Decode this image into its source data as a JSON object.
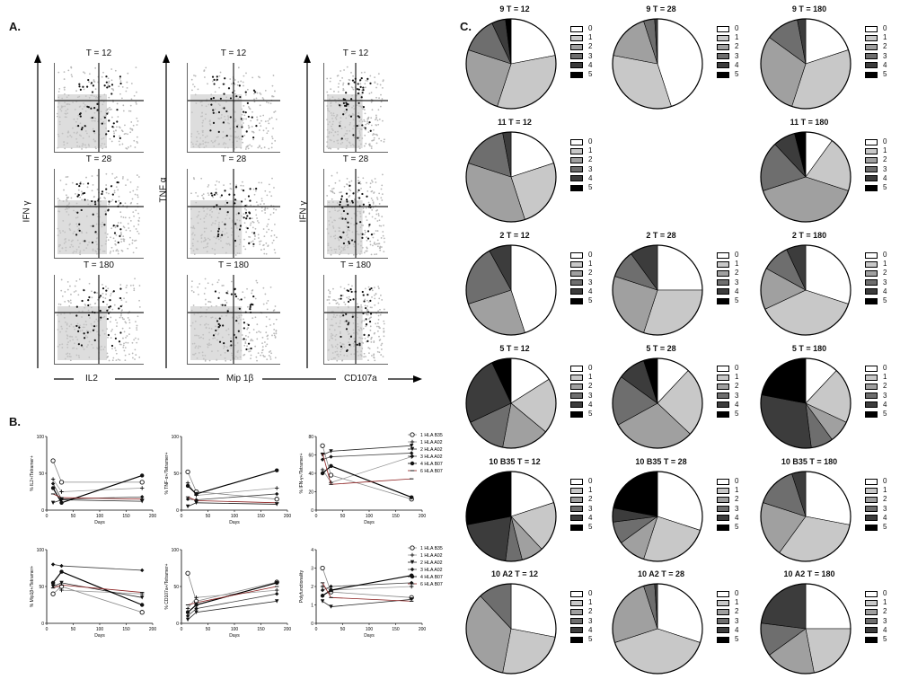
{
  "panel_a": {
    "label": "A.",
    "columns": [
      {
        "timepoints": [
          "T = 12",
          "T = 28",
          "T = 180"
        ],
        "y_label": "IFN γ",
        "x_label": "IL2"
      },
      {
        "timepoints": [
          "T = 12",
          "T = 28",
          "T = 180"
        ],
        "y_label": "TNF α",
        "x_label": "Mip 1β"
      },
      {
        "timepoints": [
          "T = 12",
          "T = 28",
          "T = 180"
        ],
        "y_label": "IFN γ",
        "x_label": "CD107a"
      }
    ]
  },
  "panel_b": {
    "label": "B.",
    "legend_entries": [
      "1 HLA B35",
      "1 HLA A02",
      "2 HLA A02",
      "3 HLA A02",
      "4 HLA B07",
      "6 HLA B07"
    ],
    "xlabel": "Days"
  },
  "panel_c": {
    "label": "C.",
    "legend_labels": [
      "0",
      "1",
      "2",
      "3",
      "4",
      "5"
    ],
    "legend_colors": [
      "#ffffff",
      "#c8c8c8",
      "#a0a0a0",
      "#6e6e6e",
      "#3c3c3c",
      "#000000"
    ]
  },
  "chart_data": [
    {
      "type": "line",
      "ylabel": "% IL2+/Tetramer+",
      "xlabel": "Days",
      "xlim": [
        0,
        200
      ],
      "ylim": [
        0,
        100
      ],
      "xticks": [
        0,
        50,
        100,
        150,
        200
      ],
      "yticks": [
        0,
        50,
        100
      ],
      "series": [
        {
          "name": "1 HLA B35",
          "x": [
            12,
            28,
            180
          ],
          "y": [
            67,
            38,
            38
          ]
        },
        {
          "name": "1 HLA A02",
          "x": [
            12,
            28,
            180
          ],
          "y": [
            42,
            25,
            30
          ]
        },
        {
          "name": "2 HLA A02",
          "x": [
            12,
            28,
            180
          ],
          "y": [
            10,
            14,
            12
          ]
        },
        {
          "name": "3 HLA A02",
          "x": [
            12,
            28,
            180
          ],
          "y": [
            36,
            15,
            18
          ]
        },
        {
          "name": "4 HLA B07",
          "x": [
            12,
            28,
            180
          ],
          "y": [
            30,
            10,
            47
          ]
        },
        {
          "name": "6 HLA B07",
          "x": [
            12,
            28,
            180
          ],
          "y": [
            22,
            17,
            15
          ]
        }
      ]
    },
    {
      "type": "line",
      "ylabel": "% TNF-α+/Tetramer+",
      "xlabel": "Days",
      "xlim": [
        0,
        200
      ],
      "ylim": [
        0,
        100
      ],
      "xticks": [
        0,
        50,
        100,
        150,
        200
      ],
      "yticks": [
        0,
        50,
        100
      ],
      "series": [
        {
          "name": "1 HLA B35",
          "x": [
            12,
            28,
            180
          ],
          "y": [
            52,
            25,
            15
          ]
        },
        {
          "name": "1 HLA A02",
          "x": [
            12,
            28,
            180
          ],
          "y": [
            37,
            20,
            30
          ]
        },
        {
          "name": "2 HLA A02",
          "x": [
            12,
            28,
            180
          ],
          "y": [
            5,
            10,
            8
          ]
        },
        {
          "name": "3 HLA A02",
          "x": [
            12,
            28,
            180
          ],
          "y": [
            15,
            14,
            22
          ]
        },
        {
          "name": "4 HLA B07",
          "x": [
            12,
            28,
            180
          ],
          "y": [
            33,
            22,
            54
          ]
        },
        {
          "name": "6 HLA B07",
          "x": [
            12,
            28,
            180
          ],
          "y": [
            18,
            13,
            10
          ]
        }
      ]
    },
    {
      "type": "line",
      "ylabel": "% IFN-γ+/Tetramer+",
      "xlabel": "Days",
      "xlim": [
        0,
        200
      ],
      "ylim": [
        0,
        80
      ],
      "xticks": [
        0,
        50,
        100,
        150,
        200
      ],
      "yticks": [
        0,
        20,
        40,
        60,
        80
      ],
      "series": [
        {
          "name": "1 HLA B35",
          "x": [
            12,
            28,
            180
          ],
          "y": [
            70,
            38,
            12
          ]
        },
        {
          "name": "1 HLA A02",
          "x": [
            12,
            28,
            180
          ],
          "y": [
            44,
            30,
            58
          ]
        },
        {
          "name": "2 HLA A02",
          "x": [
            12,
            28,
            180
          ],
          "y": [
            60,
            64,
            70
          ]
        },
        {
          "name": "3 HLA A02",
          "x": [
            12,
            28,
            180
          ],
          "y": [
            55,
            58,
            62
          ]
        },
        {
          "name": "4 HLA B07",
          "x": [
            12,
            28,
            180
          ],
          "y": [
            40,
            48,
            14
          ]
        },
        {
          "name": "6 HLA B07",
          "x": [
            12,
            28,
            180
          ],
          "y": [
            62,
            28,
            34
          ]
        }
      ]
    },
    {
      "type": "line",
      "ylabel": "% Mip1β+/Tetramer+",
      "xlabel": "Days",
      "xlim": [
        0,
        200
      ],
      "ylim": [
        0,
        100
      ],
      "xticks": [
        0,
        50,
        100,
        150,
        200
      ],
      "yticks": [
        0,
        50,
        100
      ],
      "series": [
        {
          "name": "1 HLA B35",
          "x": [
            12,
            28,
            180
          ],
          "y": [
            40,
            50,
            15
          ]
        },
        {
          "name": "1 HLA A02",
          "x": [
            12,
            28,
            180
          ],
          "y": [
            55,
            45,
            40
          ]
        },
        {
          "name": "2 HLA A02",
          "x": [
            12,
            28,
            180
          ],
          "y": [
            50,
            55,
            35
          ]
        },
        {
          "name": "3 HLA A02",
          "x": [
            12,
            28,
            180
          ],
          "y": [
            80,
            78,
            72
          ]
        },
        {
          "name": "4 HLA B07",
          "x": [
            12,
            28,
            180
          ],
          "y": [
            55,
            70,
            25
          ]
        },
        {
          "name": "6 HLA B07",
          "x": [
            12,
            28,
            180
          ],
          "y": [
            48,
            52,
            42
          ]
        }
      ]
    },
    {
      "type": "line",
      "ylabel": "% CD107a+/Tetramer+",
      "xlabel": "Days",
      "xlim": [
        0,
        200
      ],
      "ylim": [
        0,
        100
      ],
      "xticks": [
        0,
        50,
        100,
        150,
        200
      ],
      "yticks": [
        0,
        50,
        100
      ],
      "series": [
        {
          "name": "1 HLA B35",
          "x": [
            12,
            28,
            180
          ],
          "y": [
            68,
            30,
            56
          ]
        },
        {
          "name": "1 HLA A02",
          "x": [
            12,
            28,
            180
          ],
          "y": [
            20,
            35,
            45
          ]
        },
        {
          "name": "2 HLA A02",
          "x": [
            12,
            28,
            180
          ],
          "y": [
            5,
            15,
            30
          ]
        },
        {
          "name": "3 HLA A02",
          "x": [
            12,
            28,
            180
          ],
          "y": [
            10,
            20,
            40
          ]
        },
        {
          "name": "4 HLA B07",
          "x": [
            12,
            28,
            180
          ],
          "y": [
            15,
            25,
            55
          ]
        },
        {
          "name": "6 HLA B07",
          "x": [
            12,
            28,
            180
          ],
          "y": [
            25,
            28,
            50
          ]
        }
      ]
    },
    {
      "type": "line",
      "ylabel": "Polyfunctionality",
      "xlabel": "Days",
      "xlim": [
        0,
        200
      ],
      "ylim": [
        0,
        4
      ],
      "xticks": [
        0,
        50,
        100,
        150,
        200
      ],
      "yticks": [
        0,
        1,
        2,
        3,
        4
      ],
      "series": [
        {
          "name": "1 HLA B35",
          "x": [
            12,
            28,
            180
          ],
          "y": [
            3.0,
            1.7,
            1.4
          ]
        },
        {
          "name": "1 HLA A02",
          "x": [
            12,
            28,
            180
          ],
          "y": [
            2.0,
            1.8,
            2.0
          ]
        },
        {
          "name": "2 HLA A02",
          "x": [
            12,
            28,
            180
          ],
          "y": [
            1.2,
            0.9,
            1.3
          ]
        },
        {
          "name": "3 HLA A02",
          "x": [
            12,
            28,
            180
          ],
          "y": [
            1.8,
            2.0,
            2.2
          ]
        },
        {
          "name": "4 HLA B07",
          "x": [
            12,
            28,
            180
          ],
          "y": [
            1.5,
            1.8,
            2.6
          ]
        },
        {
          "name": "6 HLA B07",
          "x": [
            12,
            28,
            180
          ],
          "y": [
            2.2,
            1.4,
            1.2
          ]
        }
      ]
    },
    {
      "type": "pie",
      "categories": [
        "0",
        "1",
        "2",
        "3",
        "4",
        "5"
      ],
      "pies": [
        {
          "title": "9 T = 12",
          "values": [
            22,
            33,
            25,
            13,
            5,
            2
          ]
        },
        {
          "title": "9 T = 28",
          "values": [
            45,
            33,
            17,
            4,
            1,
            0
          ]
        },
        {
          "title": "9  T = 180",
          "values": [
            20,
            35,
            30,
            12,
            3,
            0
          ]
        },
        {
          "title": "11 T = 12",
          "values": [
            20,
            25,
            35,
            17,
            3,
            0
          ]
        },
        {
          "title": "11 T = 180",
          "values": [
            10,
            20,
            40,
            18,
            8,
            4
          ]
        },
        {
          "title": "2 T = 12",
          "values": [
            45,
            0,
            25,
            22,
            8,
            0
          ]
        },
        {
          "title": "2 T = 28",
          "values": [
            25,
            30,
            25,
            10,
            10,
            0
          ]
        },
        {
          "title": "2 T = 180",
          "values": [
            30,
            38,
            15,
            10,
            7,
            0
          ]
        },
        {
          "title": "5 T = 12",
          "values": [
            16,
            20,
            17,
            15,
            25,
            7
          ]
        },
        {
          "title": "5 T = 28",
          "values": [
            12,
            25,
            30,
            18,
            10,
            5
          ]
        },
        {
          "title": "5 T = 180",
          "values": [
            12,
            20,
            8,
            8,
            30,
            22
          ]
        },
        {
          "title": "10 B35 T = 12",
          "values": [
            20,
            18,
            8,
            6,
            20,
            28
          ]
        },
        {
          "title": "10 B35 T = 28",
          "values": [
            30,
            25,
            10,
            8,
            5,
            22
          ]
        },
        {
          "title": "10 B35 T = 180",
          "values": [
            28,
            32,
            20,
            15,
            5,
            0
          ]
        },
        {
          "title": "10 A2 T = 12",
          "values": [
            28,
            25,
            35,
            12,
            0,
            0
          ]
        },
        {
          "title": "10 A2 T = 28",
          "values": [
            30,
            40,
            25,
            4,
            1,
            0
          ]
        },
        {
          "title": "10 A2 T = 180",
          "values": [
            25,
            22,
            18,
            12,
            23,
            0
          ]
        }
      ]
    }
  ]
}
